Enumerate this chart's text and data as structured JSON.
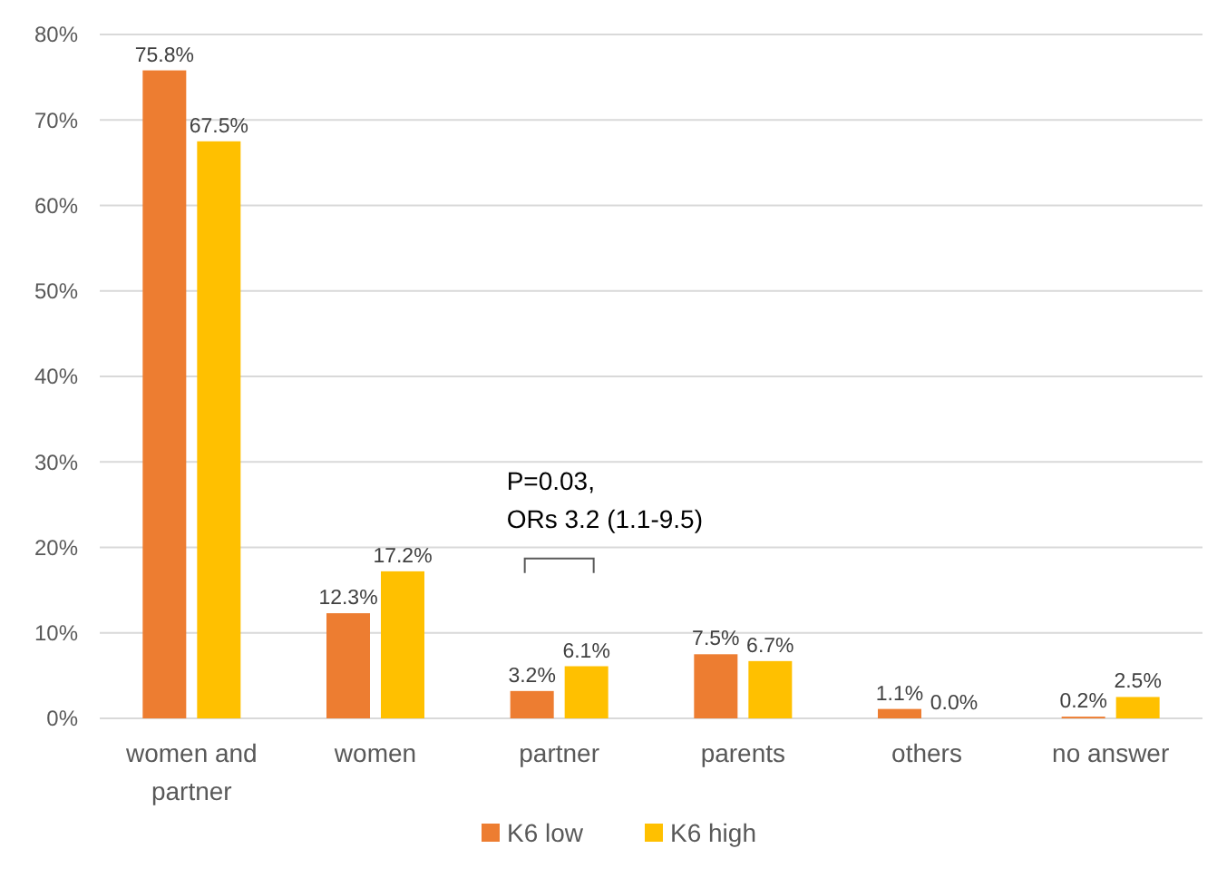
{
  "chart_data": {
    "type": "bar",
    "categories": [
      "women and partner",
      "women",
      "partner",
      "parents",
      "others",
      "no answer"
    ],
    "series": [
      {
        "name": "K6 low",
        "color": "#ed7d31",
        "values": [
          75.8,
          12.3,
          3.2,
          7.5,
          1.1,
          0.2
        ]
      },
      {
        "name": "K6 high",
        "color": "#ffc000",
        "values": [
          67.5,
          17.2,
          6.1,
          6.7,
          0.0,
          2.5
        ]
      }
    ],
    "ylim": [
      0,
      80
    ],
    "yticks": [
      {
        "value": 0,
        "label": "0%"
      },
      {
        "value": 10,
        "label": "10%"
      },
      {
        "value": 20,
        "label": "20%"
      },
      {
        "value": 30,
        "label": "30%"
      },
      {
        "value": 40,
        "label": "40%"
      },
      {
        "value": 50,
        "label": "50%"
      },
      {
        "value": 60,
        "label": "60%"
      },
      {
        "value": 70,
        "label": "70%"
      },
      {
        "value": 80,
        "label": "80%"
      }
    ],
    "value_labels": [
      [
        "75.8%",
        "12.3%",
        "3.2%",
        "7.5%",
        "1.1%",
        "0.2%"
      ],
      [
        "67.5%",
        "17.2%",
        "6.1%",
        "6.7%",
        "0.0%",
        "2.5%"
      ]
    ],
    "annotations": [
      "P=0.03, ORs 3.2 (1.1-9.5)"
    ],
    "grid": "y",
    "legend": "bottom"
  }
}
